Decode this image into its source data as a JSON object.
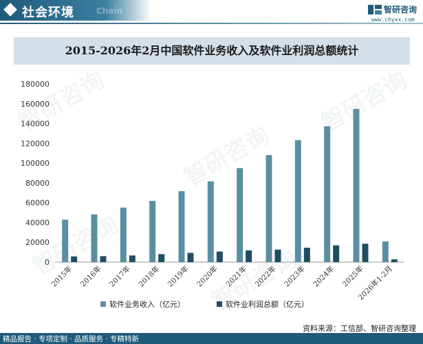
{
  "header": {
    "title": "社会环境",
    "subtitle": "Chain",
    "logo_text": "智研咨询",
    "logo_url": "www.chyxx.com"
  },
  "chart_data": {
    "type": "bar",
    "title": "2015-2026年2月中国软件业务收入及软件业利润总额统计",
    "categories": [
      "2015年",
      "2016年",
      "2017年",
      "2018年",
      "2019年",
      "2020年",
      "2021年",
      "2022年",
      "2023年",
      "2024年",
      "2025年",
      "2026年1-2月"
    ],
    "series": [
      {
        "name": "软件业务收入（亿元）",
        "color": "#5a8fa3",
        "values": [
          42848,
          48232,
          55103,
          61909,
          71768,
          81616,
          94994,
          108126,
          123258,
          137276,
          154800,
          21000
        ]
      },
      {
        "name": "软件业利润总额（亿元）",
        "color": "#1f4e63",
        "values": [
          5766,
          6021,
          6717,
          8079,
          9362,
          10676,
          11875,
          12648,
          14591,
          16953,
          18600,
          2900
        ]
      }
    ],
    "y_ticks": [
      "0",
      "20000",
      "40000",
      "60000",
      "80000",
      "100000",
      "120000",
      "140000",
      "160000",
      "180000"
    ],
    "ylim": [
      0,
      180000
    ],
    "grid": false,
    "legend_position": "bottom"
  },
  "footer": {
    "source": "资料来源：工信部、智研咨询整理",
    "tagline": "精品报告 · 专项定制 · 品质服务 · 专精特新"
  }
}
